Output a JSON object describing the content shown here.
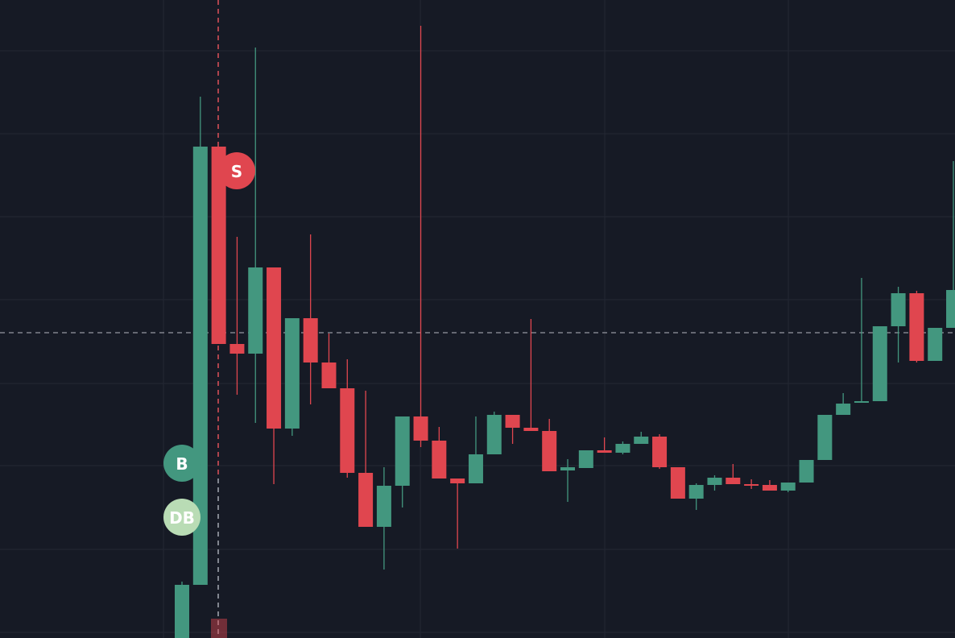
{
  "chart_data": {
    "type": "candlestick",
    "up_color": "#43977f",
    "down_color": "#e0464f",
    "ylim": [
      0,
      792
    ],
    "price_line": 379,
    "annotations": [
      "S",
      "B",
      "DB"
    ],
    "open": [
      0,
      66,
      610,
      365,
      353,
      460,
      260,
      397,
      342,
      310,
      205,
      138,
      189,
      275,
      245,
      198,
      192,
      228,
      277,
      261,
      257,
      208,
      211,
      233,
      230,
      241,
      250,
      212,
      173,
      190,
      199,
      191,
      190,
      183,
      193,
      221,
      277,
      292,
      294,
      387,
      428,
      344,
      385
    ],
    "high": [
      70,
      672,
      610,
      498,
      733,
      460,
      397,
      501,
      378,
      346,
      307,
      212,
      275,
      760,
      262,
      198,
      275,
      281,
      277,
      396,
      272,
      222,
      233,
      249,
      244,
      256,
      253,
      212,
      192,
      202,
      216,
      197,
      196,
      193,
      221,
      277,
      304,
      447,
      387,
      436,
      431,
      385,
      592
    ],
    "low": [
      0,
      66,
      365,
      302,
      267,
      191,
      251,
      290,
      310,
      199,
      138,
      85,
      162,
      237,
      198,
      111,
      192,
      228,
      241,
      257,
      207,
      169,
      211,
      230,
      228,
      241,
      210,
      173,
      159,
      183,
      191,
      185,
      183,
      181,
      193,
      221,
      277,
      292,
      294,
      342,
      342,
      344,
      385
    ],
    "close": [
      66,
      610,
      365,
      353,
      460,
      260,
      397,
      342,
      310,
      205,
      138,
      189,
      275,
      245,
      198,
      192,
      228,
      277,
      261,
      257,
      207,
      212,
      233,
      230,
      241,
      250,
      212,
      173,
      190,
      199,
      191,
      189,
      183,
      193,
      221,
      277,
      291,
      294,
      387,
      428,
      344,
      385,
      432
    ]
  }
}
